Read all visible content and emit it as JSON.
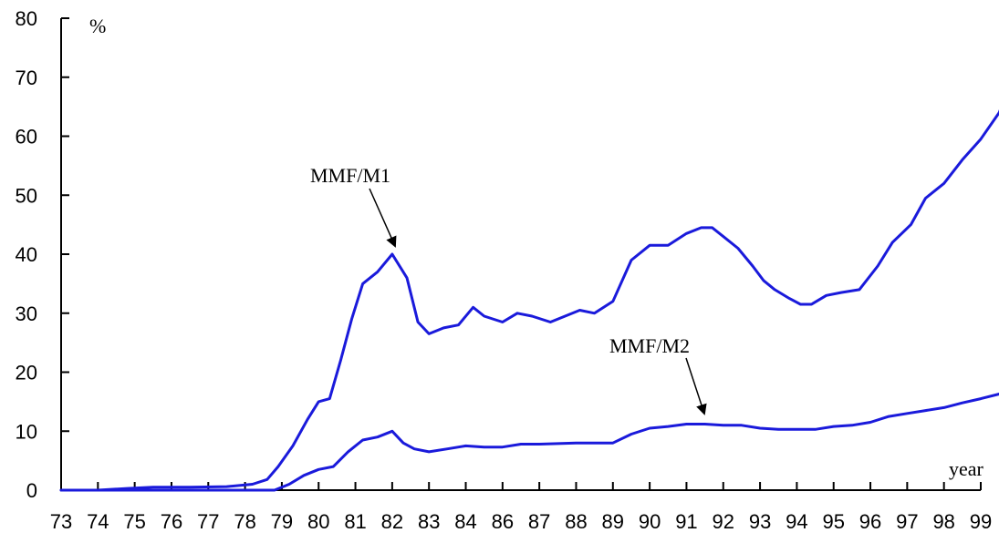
{
  "chart_data": {
    "type": "line",
    "title": "",
    "xlabel": "year",
    "ylabel": "%",
    "ylim": [
      0,
      80
    ],
    "y_ticks": [
      "0",
      "10",
      "20",
      "30",
      "40",
      "50",
      "60",
      "70",
      "80"
    ],
    "x_tick_labels": [
      "73",
      "74",
      "75",
      "76",
      "77",
      "78",
      "79",
      "80",
      "81",
      "82",
      "83",
      "84",
      "86",
      "87",
      "88",
      "89",
      "90",
      "91",
      "92",
      "93",
      "94",
      "95",
      "96",
      "97",
      "98",
      "99"
    ],
    "grid": false,
    "line_color": "#1a1adb",
    "series": [
      {
        "name": "MMF/M1",
        "x": [
          0,
          1,
          1.8,
          2.5,
          3.5,
          4.5,
          5.2,
          5.6,
          5.9,
          6.3,
          6.7,
          7.0,
          7.3,
          7.6,
          7.9,
          8.2,
          8.6,
          9.0,
          9.4,
          9.7,
          10.0,
          10.4,
          10.8,
          11.2,
          11.5,
          12.0,
          12.4,
          12.8,
          13.3,
          13.7,
          14.1,
          14.5,
          15.0,
          15.5,
          16.0,
          16.5,
          17.0,
          17.4,
          17.7,
          18.0,
          18.4,
          18.8,
          19.1,
          19.4,
          19.8,
          20.1,
          20.4,
          20.8,
          21.2,
          21.7,
          22.2,
          22.6,
          23.1,
          23.5,
          24.0,
          24.5,
          25.0,
          25.5,
          26.0
        ],
        "values": [
          0,
          0,
          0.3,
          0.5,
          0.5,
          0.6,
          1.0,
          1.8,
          4.0,
          7.5,
          12.0,
          15.0,
          15.5,
          22.0,
          29.0,
          35.0,
          37.0,
          40.0,
          36.0,
          28.5,
          26.5,
          27.5,
          28.0,
          31.0,
          29.5,
          28.5,
          30.0,
          29.5,
          28.5,
          29.5,
          30.5,
          30.0,
          32.0,
          39.0,
          41.5,
          41.5,
          43.5,
          44.5,
          44.5,
          43.0,
          41.0,
          38.0,
          35.5,
          34.0,
          32.5,
          31.5,
          31.5,
          33.0,
          33.5,
          34.0,
          38.0,
          42.0,
          45.0,
          49.5,
          52.0,
          56.0,
          59.5,
          64.0,
          71.5
        ]
      },
      {
        "name": "MMF/M2",
        "x": [
          0,
          1,
          2,
          3,
          4,
          5,
          5.8,
          6.2,
          6.6,
          7.0,
          7.4,
          7.8,
          8.2,
          8.6,
          9.0,
          9.3,
          9.6,
          10.0,
          10.5,
          11.0,
          11.5,
          12.0,
          12.5,
          13.0,
          14.0,
          15.0,
          15.5,
          16.0,
          16.5,
          17.0,
          17.5,
          18.0,
          18.5,
          19.0,
          19.5,
          20.0,
          20.5,
          21.0,
          21.5,
          22.0,
          22.5,
          23.0,
          23.5,
          24.0,
          24.5,
          25.0,
          25.5,
          26.0
        ],
        "values": [
          0,
          0,
          0,
          0,
          0,
          0,
          0,
          1.0,
          2.5,
          3.5,
          4.0,
          6.5,
          8.5,
          9.0,
          10.0,
          8.0,
          7.0,
          6.5,
          7.0,
          7.5,
          7.3,
          7.3,
          7.8,
          7.8,
          8.0,
          8.0,
          9.5,
          10.5,
          10.8,
          11.2,
          11.2,
          11.0,
          11.0,
          10.5,
          10.3,
          10.3,
          10.3,
          10.8,
          11.0,
          11.5,
          12.5,
          13.0,
          13.5,
          14.0,
          14.8,
          15.5,
          16.3,
          17.8
        ]
      }
    ],
    "annotations": [
      {
        "text": "MMF/M1"
      },
      {
        "text": "MMF/M2"
      }
    ]
  }
}
